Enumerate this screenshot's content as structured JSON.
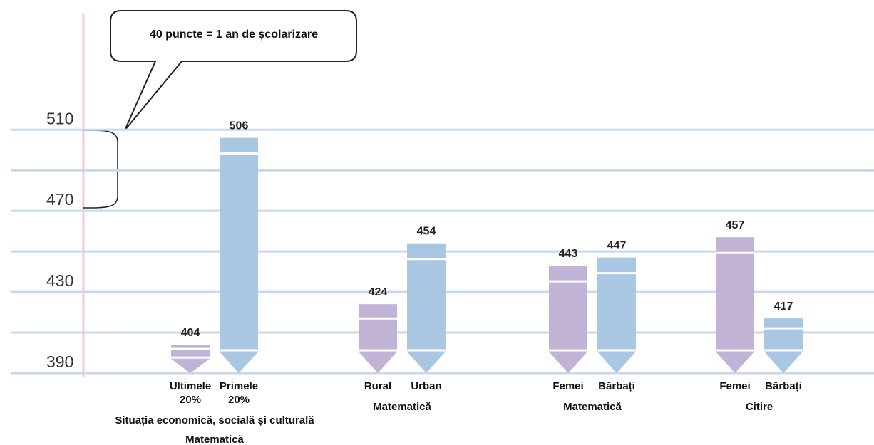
{
  "chart_data": {
    "type": "pencil-bar",
    "annotation": "40 puncte = 1 an de școlarizare",
    "ylim": [
      390,
      574
    ],
    "yticks": [
      390,
      430,
      470,
      510
    ],
    "minor_yticks": [
      410,
      450,
      490
    ],
    "grid": true,
    "colors": [
      "#c1b3d6",
      "#a9c6e3"
    ],
    "groups": [
      {
        "labels": [
          "Situația economică, socială și culturală",
          "Matematică"
        ],
        "categories": [
          "Ultimele 20%",
          "Primele 20%"
        ],
        "values": [
          404,
          506
        ]
      },
      {
        "labels": [
          "Matematică"
        ],
        "categories": [
          "Rural",
          "Urban"
        ],
        "values": [
          424,
          454
        ]
      },
      {
        "labels": [
          "Matematică"
        ],
        "categories": [
          "Femei",
          "Bărbați"
        ],
        "values": [
          443,
          447
        ]
      },
      {
        "labels": [
          "Citire"
        ],
        "categories": [
          "Femei",
          "Bărbați"
        ],
        "values": [
          457,
          417
        ]
      }
    ]
  }
}
